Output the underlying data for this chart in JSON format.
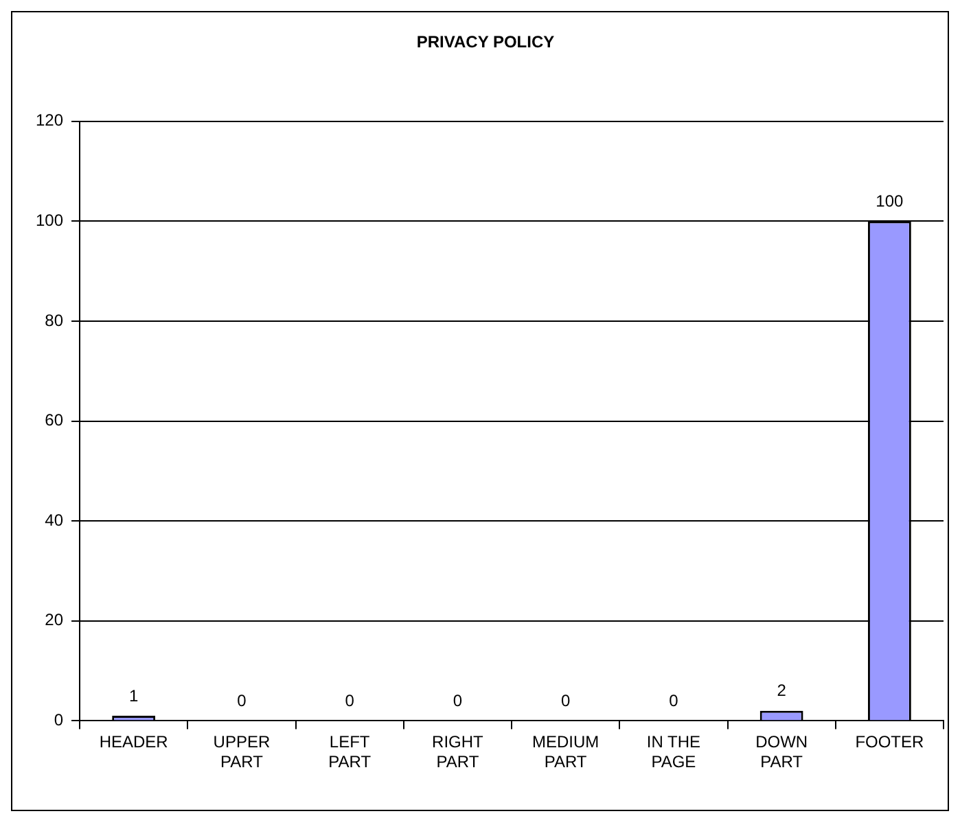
{
  "chart_data": {
    "type": "bar",
    "title": "PRIVACY POLICY",
    "categories": [
      "HEADER",
      "UPPER\nPART",
      "LEFT\nPART",
      "RIGHT\nPART",
      "MEDIUM\nPART",
      "IN THE\nPAGE",
      "DOWN\nPART",
      "FOOTER"
    ],
    "values": [
      1,
      0,
      0,
      0,
      0,
      0,
      2,
      100
    ],
    "color": "#9999ff",
    "ylim": [
      0,
      120
    ],
    "yticks": [
      0,
      20,
      40,
      60,
      80,
      100,
      120
    ],
    "grid": "y",
    "data_labels": true,
    "legend": false
  }
}
